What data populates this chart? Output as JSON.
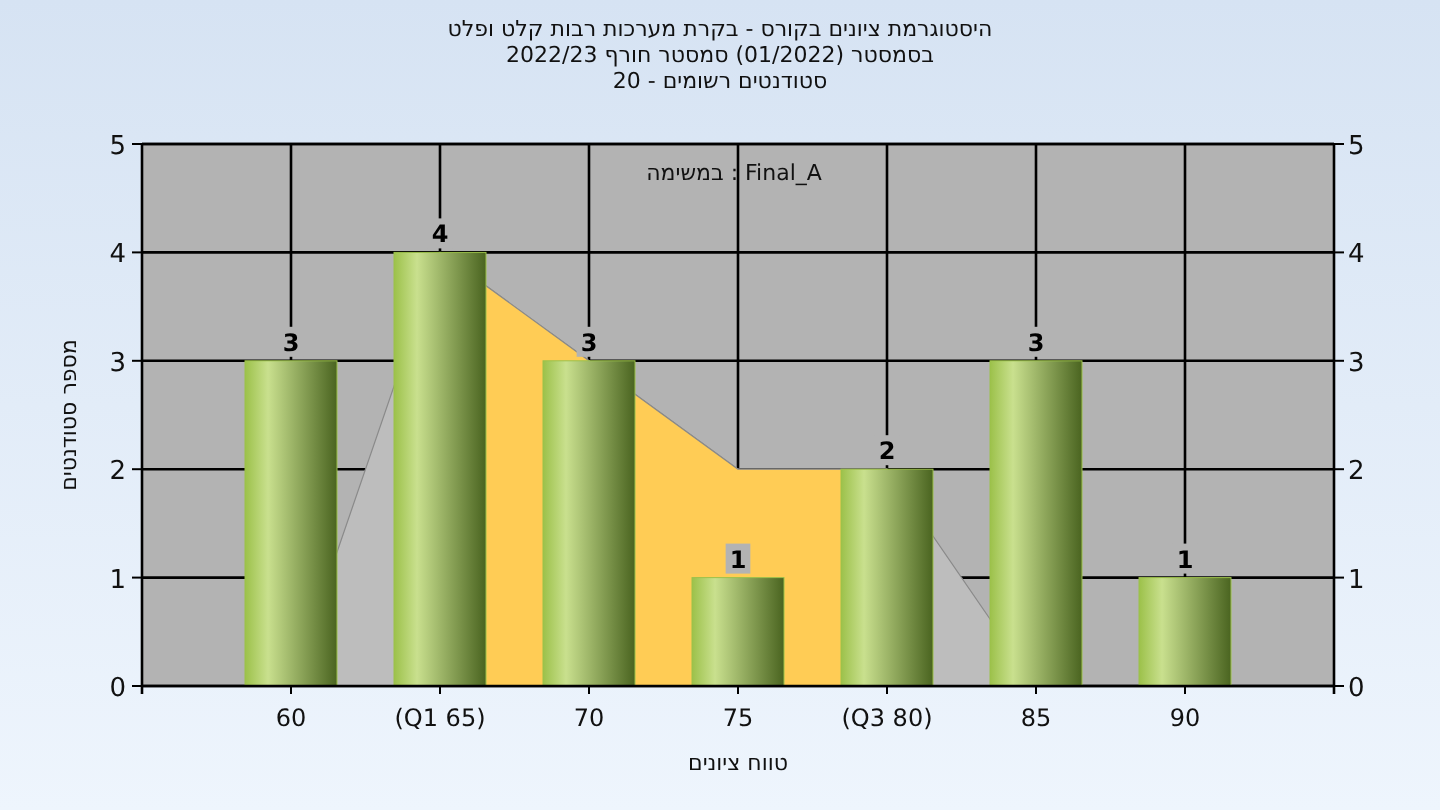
{
  "chart_data": {
    "type": "bar",
    "title": "היסטוגרמת ציונים בקורס - בקרת מערכות רבות קלט ופלט",
    "subtitle": "בסמסטר  (01/2022)  סמסטר חורף 2022/23",
    "xlabel": "טווח ציונים",
    "ylabel": "מספר סטודנטים",
    "annotations": [
      "סטודנטים רשומים - 20",
      "במשימה : Final_A"
    ],
    "categories": [
      "60",
      "(Q1 65)",
      "70",
      "75",
      "(Q3 80)",
      "85",
      "90"
    ],
    "series": [
      {
        "type": "area",
        "color": "#bdbdbd",
        "values": [
          0,
          4,
          3,
          2,
          2,
          0,
          null
        ]
      },
      {
        "type": "area",
        "color": "#ffcc55",
        "values": [
          null,
          4,
          3,
          2,
          2,
          null,
          null
        ]
      },
      {
        "color": "#9cc14a",
        "values": [
          3,
          4,
          3,
          1,
          2,
          3,
          1
        ],
        "value_labels": [
          "3",
          "4",
          "3",
          "1",
          "2",
          "3",
          "1"
        ]
      }
    ],
    "ylim": [
      0,
      5
    ],
    "yticks": [
      0,
      1,
      2,
      3,
      4,
      5
    ],
    "y2lim": [
      0,
      5
    ],
    "y2ticks": [
      0,
      1,
      2,
      3,
      4,
      5
    ],
    "grid": true
  }
}
